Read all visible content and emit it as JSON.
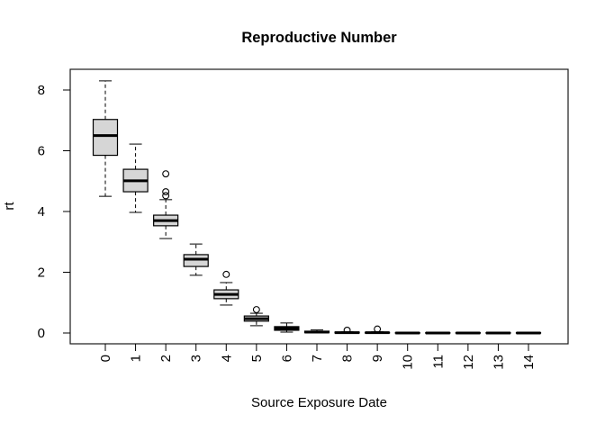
{
  "chart_data": {
    "type": "boxplot",
    "title": "Reproductive Number",
    "xlabel": "Source Exposure Date",
    "ylabel": "rt",
    "categories": [
      "0",
      "1",
      "2",
      "3",
      "4",
      "5",
      "6",
      "7",
      "8",
      "9",
      "10",
      "11",
      "12",
      "13",
      "14"
    ],
    "y_ticks": [
      0,
      2,
      4,
      6,
      8
    ],
    "ylim": [
      -0.36,
      8.7
    ],
    "grid": false,
    "legend": "none",
    "background_color": "#ffffff",
    "box_fill_color": "#d6d6d6",
    "box_border_color": "#000000",
    "boxes": [
      {
        "category": "0",
        "whisker_low": 4.5,
        "q1": 5.85,
        "median": 6.5,
        "q3": 7.03,
        "whisker_high": 8.3,
        "outliers": []
      },
      {
        "category": "1",
        "whisker_low": 3.97,
        "q1": 4.65,
        "median": 5.01,
        "q3": 5.39,
        "whisker_high": 6.22,
        "outliers": []
      },
      {
        "category": "2",
        "whisker_low": 3.11,
        "q1": 3.53,
        "median": 3.7,
        "q3": 3.88,
        "whisker_high": 4.39,
        "outliers": [
          5.24,
          4.65,
          4.52
        ]
      },
      {
        "category": "3",
        "whisker_low": 1.9,
        "q1": 2.19,
        "median": 2.43,
        "q3": 2.58,
        "whisker_high": 2.93,
        "outliers": []
      },
      {
        "category": "4",
        "whisker_low": 0.92,
        "q1": 1.13,
        "median": 1.27,
        "q3": 1.42,
        "whisker_high": 1.66,
        "outliers": [
          1.93
        ]
      },
      {
        "category": "5",
        "whisker_low": 0.24,
        "q1": 0.39,
        "median": 0.47,
        "q3": 0.56,
        "whisker_high": 0.65,
        "outliers": [
          0.77
        ]
      },
      {
        "category": "6",
        "whisker_low": 0.03,
        "q1": 0.09,
        "median": 0.15,
        "q3": 0.21,
        "whisker_high": 0.33,
        "outliers": []
      },
      {
        "category": "7",
        "whisker_low": 0.0,
        "q1": 0.01,
        "median": 0.03,
        "q3": 0.06,
        "whisker_high": 0.1,
        "outliers": []
      },
      {
        "category": "8",
        "whisker_low": 0.0,
        "q1": 0.0,
        "median": 0.01,
        "q3": 0.03,
        "whisker_high": 0.04,
        "outliers": [
          0.09
        ]
      },
      {
        "category": "9",
        "whisker_low": 0.0,
        "q1": 0.0,
        "median": 0.01,
        "q3": 0.02,
        "whisker_high": 0.04,
        "outliers": [
          0.13
        ]
      },
      {
        "category": "10",
        "whisker_low": 0.0,
        "q1": 0.0,
        "median": 0.0,
        "q3": 0.01,
        "whisker_high": 0.01,
        "outliers": []
      },
      {
        "category": "11",
        "whisker_low": 0.0,
        "q1": 0.0,
        "median": 0.0,
        "q3": 0.01,
        "whisker_high": 0.01,
        "outliers": []
      },
      {
        "category": "12",
        "whisker_low": 0.0,
        "q1": 0.0,
        "median": 0.0,
        "q3": 0.01,
        "whisker_high": 0.01,
        "outliers": []
      },
      {
        "category": "13",
        "whisker_low": 0.0,
        "q1": 0.0,
        "median": 0.0,
        "q3": 0.01,
        "whisker_high": 0.01,
        "outliers": []
      },
      {
        "category": "14",
        "whisker_low": 0.0,
        "q1": 0.0,
        "median": 0.0,
        "q3": 0.01,
        "whisker_high": 0.01,
        "outliers": []
      }
    ]
  }
}
